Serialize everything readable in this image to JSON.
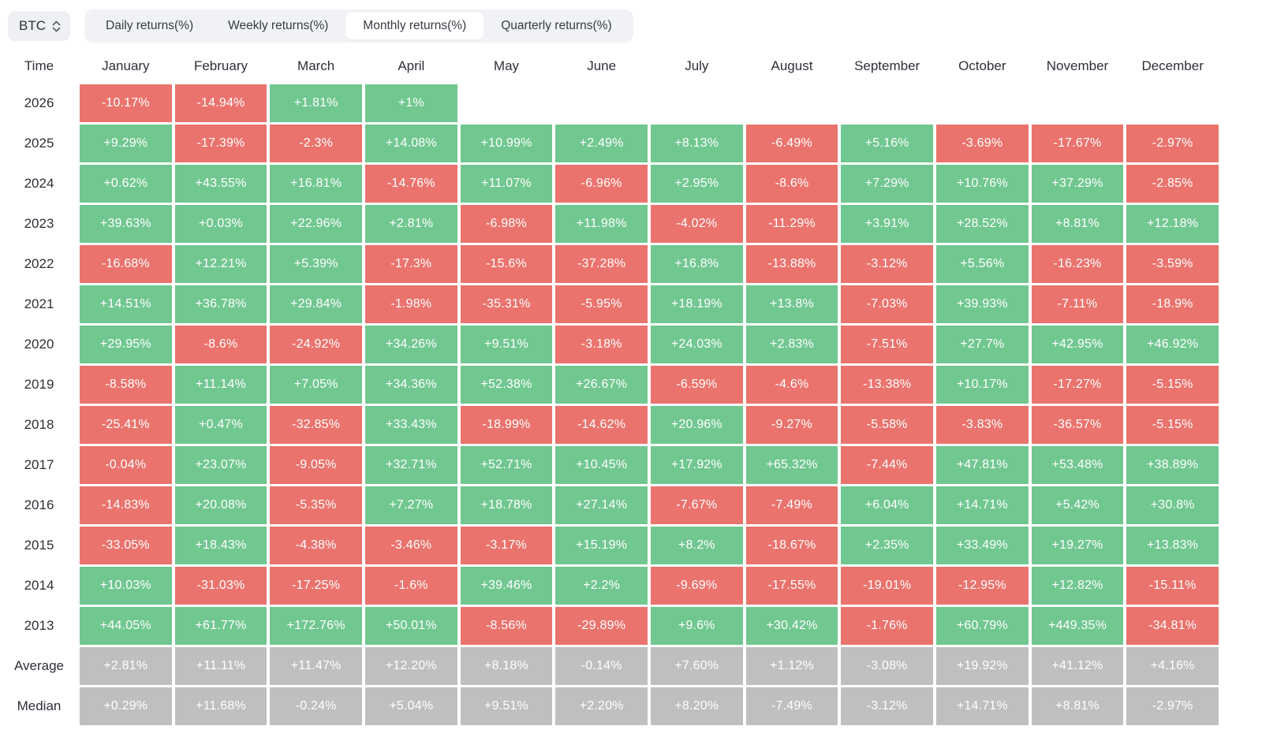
{
  "controls": {
    "symbol": "BTC",
    "symbol_icon": "up-down-chevron-icon",
    "tabs": [
      {
        "label": "Daily returns(%)",
        "active": false
      },
      {
        "label": "Weekly returns(%)",
        "active": false
      },
      {
        "label": "Monthly returns(%)",
        "active": true
      },
      {
        "label": "Quarterly returns(%)",
        "active": false
      }
    ]
  },
  "colors": {
    "positive": "#71c790",
    "negative": "#ea736d",
    "summary": "#bfbfbf",
    "toolbar_bg": "#f1f2f6",
    "active_tab_bg": "#ffffff"
  },
  "chart_data": {
    "type": "heatmap",
    "title": "BTC Monthly returns(%)",
    "legend_position": "none",
    "columns": [
      "Time",
      "January",
      "February",
      "March",
      "April",
      "May",
      "June",
      "July",
      "August",
      "September",
      "October",
      "November",
      "December"
    ],
    "rows": [
      {
        "label": "2026",
        "kind": "year",
        "values": [
          "-10.17%",
          "-14.94%",
          "+1.81%",
          "+1%",
          "",
          "",
          "",
          "",
          "",
          "",
          "",
          ""
        ]
      },
      {
        "label": "2025",
        "kind": "year",
        "values": [
          "+9.29%",
          "-17.39%",
          "-2.3%",
          "+14.08%",
          "+10.99%",
          "+2.49%",
          "+8.13%",
          "-6.49%",
          "+5.16%",
          "-3.69%",
          "-17.67%",
          "-2.97%"
        ]
      },
      {
        "label": "2024",
        "kind": "year",
        "values": [
          "+0.62%",
          "+43.55%",
          "+16.81%",
          "-14.76%",
          "+11.07%",
          "-6.96%",
          "+2.95%",
          "-8.6%",
          "+7.29%",
          "+10.76%",
          "+37.29%",
          "-2.85%"
        ]
      },
      {
        "label": "2023",
        "kind": "year",
        "values": [
          "+39.63%",
          "+0.03%",
          "+22.96%",
          "+2.81%",
          "-6.98%",
          "+11.98%",
          "-4.02%",
          "-11.29%",
          "+3.91%",
          "+28.52%",
          "+8.81%",
          "+12.18%"
        ]
      },
      {
        "label": "2022",
        "kind": "year",
        "values": [
          "-16.68%",
          "+12.21%",
          "+5.39%",
          "-17.3%",
          "-15.6%",
          "-37.28%",
          "+16.8%",
          "-13.88%",
          "-3.12%",
          "+5.56%",
          "-16.23%",
          "-3.59%"
        ]
      },
      {
        "label": "2021",
        "kind": "year",
        "values": [
          "+14.51%",
          "+36.78%",
          "+29.84%",
          "-1.98%",
          "-35.31%",
          "-5.95%",
          "+18.19%",
          "+13.8%",
          "-7.03%",
          "+39.93%",
          "-7.11%",
          "-18.9%"
        ]
      },
      {
        "label": "2020",
        "kind": "year",
        "values": [
          "+29.95%",
          "-8.6%",
          "-24.92%",
          "+34.26%",
          "+9.51%",
          "-3.18%",
          "+24.03%",
          "+2.83%",
          "-7.51%",
          "+27.7%",
          "+42.95%",
          "+46.92%"
        ]
      },
      {
        "label": "2019",
        "kind": "year",
        "values": [
          "-8.58%",
          "+11.14%",
          "+7.05%",
          "+34.36%",
          "+52.38%",
          "+26.67%",
          "-6.59%",
          "-4.6%",
          "-13.38%",
          "+10.17%",
          "-17.27%",
          "-5.15%"
        ]
      },
      {
        "label": "2018",
        "kind": "year",
        "values": [
          "-25.41%",
          "+0.47%",
          "-32.85%",
          "+33.43%",
          "-18.99%",
          "-14.62%",
          "+20.96%",
          "-9.27%",
          "-5.58%",
          "-3.83%",
          "-36.57%",
          "-5.15%"
        ]
      },
      {
        "label": "2017",
        "kind": "year",
        "values": [
          "-0.04%",
          "+23.07%",
          "-9.05%",
          "+32.71%",
          "+52.71%",
          "+10.45%",
          "+17.92%",
          "+65.32%",
          "-7.44%",
          "+47.81%",
          "+53.48%",
          "+38.89%"
        ]
      },
      {
        "label": "2016",
        "kind": "year",
        "values": [
          "-14.83%",
          "+20.08%",
          "-5.35%",
          "+7.27%",
          "+18.78%",
          "+27.14%",
          "-7.67%",
          "-7.49%",
          "+6.04%",
          "+14.71%",
          "+5.42%",
          "+30.8%"
        ]
      },
      {
        "label": "2015",
        "kind": "year",
        "values": [
          "-33.05%",
          "+18.43%",
          "-4.38%",
          "-3.46%",
          "-3.17%",
          "+15.19%",
          "+8.2%",
          "-18.67%",
          "+2.35%",
          "+33.49%",
          "+19.27%",
          "+13.83%"
        ]
      },
      {
        "label": "2014",
        "kind": "year",
        "values": [
          "+10.03%",
          "-31.03%",
          "-17.25%",
          "-1.6%",
          "+39.46%",
          "+2.2%",
          "-9.69%",
          "-17.55%",
          "-19.01%",
          "-12.95%",
          "+12.82%",
          "-15.11%"
        ]
      },
      {
        "label": "2013",
        "kind": "year",
        "values": [
          "+44.05%",
          "+61.77%",
          "+172.76%",
          "+50.01%",
          "-8.56%",
          "-29.89%",
          "+9.6%",
          "+30.42%",
          "-1.76%",
          "+60.79%",
          "+449.35%",
          "-34.81%"
        ]
      },
      {
        "label": "Average",
        "kind": "summary",
        "values": [
          "+2.81%",
          "+11.11%",
          "+11.47%",
          "+12.20%",
          "+8.18%",
          "-0.14%",
          "+7.60%",
          "+1.12%",
          "-3.08%",
          "+19.92%",
          "+41.12%",
          "+4.16%"
        ]
      },
      {
        "label": "Median",
        "kind": "summary",
        "values": [
          "+0.29%",
          "+11.68%",
          "-0.24%",
          "+5.04%",
          "+9.51%",
          "+2.20%",
          "+8.20%",
          "-7.49%",
          "-3.12%",
          "+14.71%",
          "+8.81%",
          "-2.97%"
        ]
      }
    ]
  }
}
